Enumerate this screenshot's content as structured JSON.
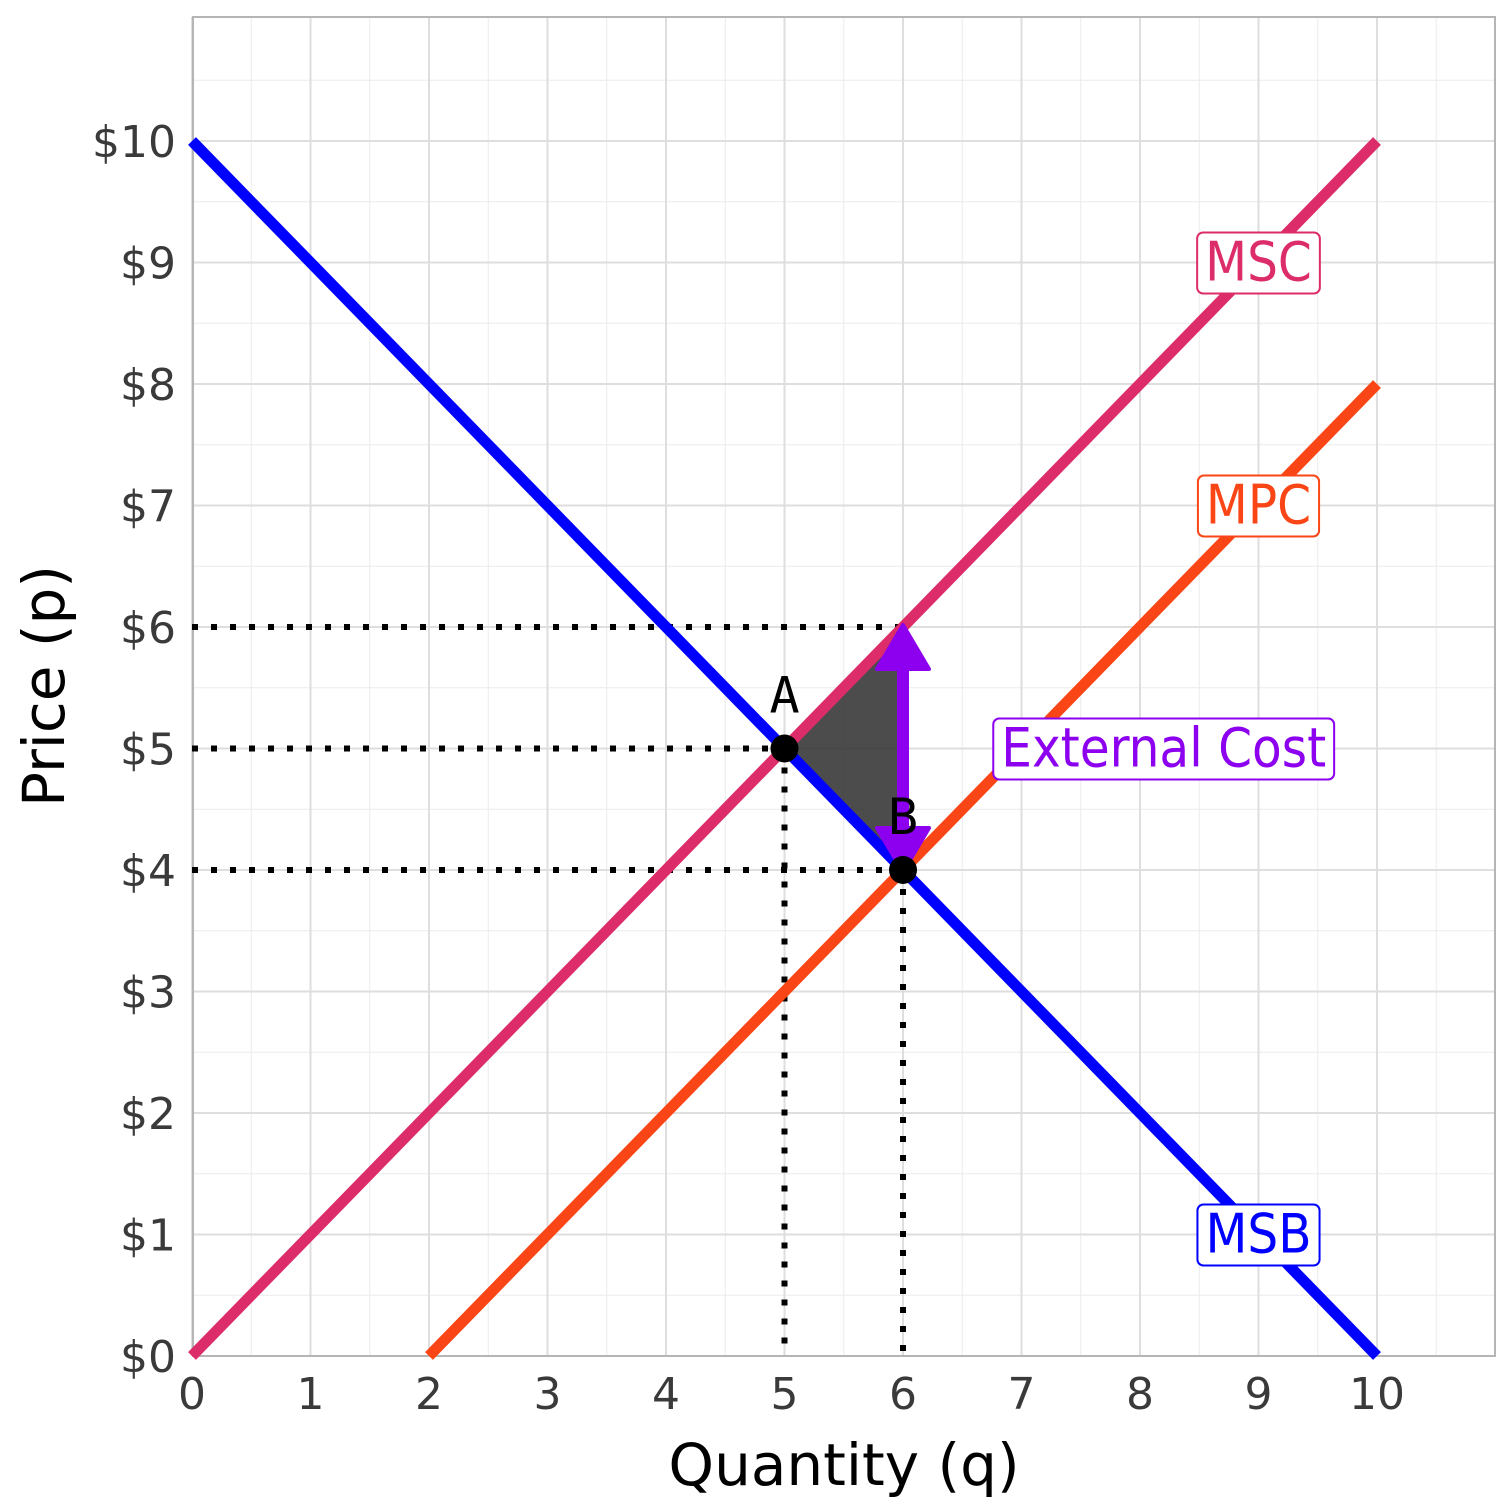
{
  "chart_data": {
    "type": "line",
    "xlabel": "Quantity (q)",
    "ylabel": "Price (p)",
    "xlim": [
      0,
      11
    ],
    "ylim": [
      0,
      10.5
    ],
    "x_ticks": [
      "0",
      "1",
      "2",
      "3",
      "4",
      "5",
      "6",
      "7",
      "8",
      "9",
      "10"
    ],
    "y_ticks": [
      "$0",
      "$1",
      "$2",
      "$3",
      "$4",
      "$5",
      "$6",
      "$7",
      "$8",
      "$9",
      "$10"
    ],
    "grid": true,
    "series": [
      {
        "name": "MSB",
        "color": "#0000ff",
        "x": [
          0,
          10
        ],
        "y": [
          10,
          0
        ],
        "label": "MSB",
        "label_at": [
          9,
          1
        ]
      },
      {
        "name": "MSC",
        "color": "#dc2d6a",
        "x": [
          0,
          10
        ],
        "y": [
          0,
          10
        ],
        "label": "MSC",
        "label_at": [
          9,
          9
        ]
      },
      {
        "name": "MPC",
        "color": "#fa4616",
        "x": [
          2,
          10
        ],
        "y": [
          0,
          8
        ],
        "label": "MPC",
        "label_at": [
          9,
          7
        ]
      }
    ],
    "shaded_area": {
      "x": [
        5,
        6,
        6
      ],
      "y": [
        5,
        6,
        4
      ],
      "color": "#333333"
    },
    "points": [
      {
        "label": "A",
        "x": 5,
        "y": 5
      },
      {
        "label": "B",
        "x": 6,
        "y": 4
      }
    ],
    "reference_lines": [
      {
        "orientation": "horizontal",
        "y": 6,
        "x_end": 6
      },
      {
        "orientation": "horizontal",
        "y": 5,
        "x_end": 5
      },
      {
        "orientation": "horizontal",
        "y": 4,
        "x_end": 6
      },
      {
        "orientation": "vertical",
        "x": 5,
        "y_end": 5
      },
      {
        "orientation": "vertical",
        "x": 6,
        "y_end": 4
      }
    ],
    "annotation": {
      "text": "External Cost",
      "color": "#8c00ef",
      "arrow_x": 6,
      "arrow_from": 4,
      "arrow_to": 6,
      "label_at": [
        8.2,
        5
      ]
    }
  }
}
